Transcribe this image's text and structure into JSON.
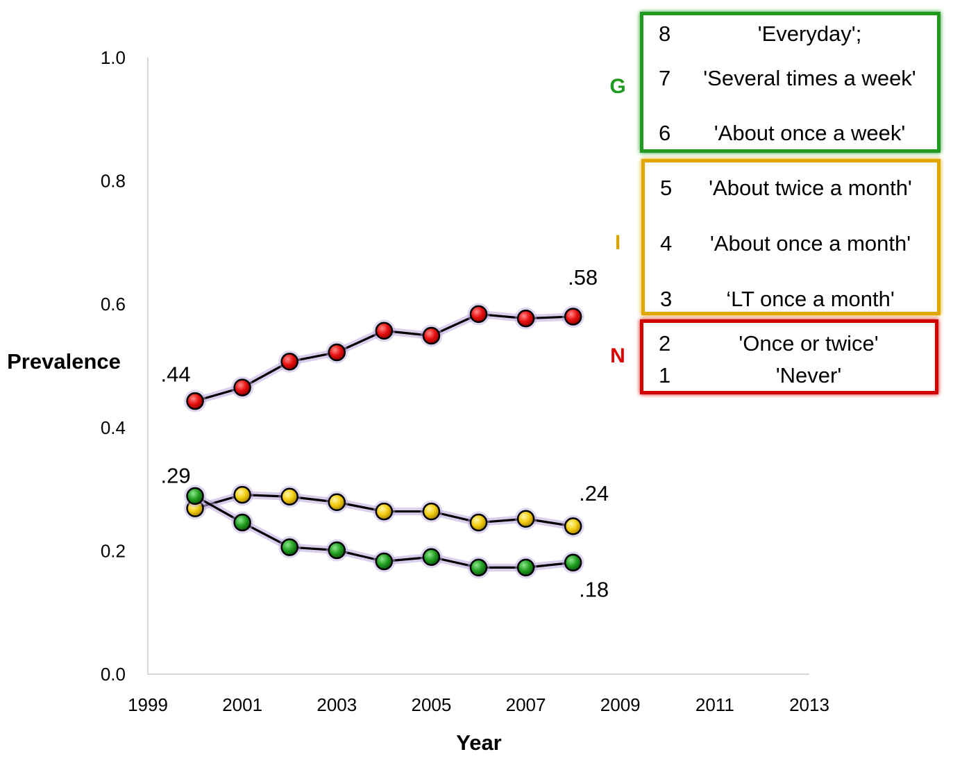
{
  "chart_data": {
    "type": "line",
    "xlabel": "Year",
    "ylabel": "Prevalence",
    "xlim": [
      1999,
      2013
    ],
    "ylim": [
      0,
      1
    ],
    "xticks": [
      "1999",
      "2001",
      "2003",
      "2005",
      "2007",
      "2009",
      "2011",
      "2013"
    ],
    "yticks": [
      "0.0",
      "0.2",
      "0.4",
      "0.6",
      "0.8",
      "1.0"
    ],
    "x": [
      2000,
      2001,
      2002,
      2003,
      2004,
      2005,
      2006,
      2007,
      2008
    ],
    "grid": false,
    "series": [
      {
        "name": "N",
        "color": "#e00000",
        "values": [
          0.443,
          0.465,
          0.507,
          0.522,
          0.557,
          0.549,
          0.584,
          0.577,
          0.58
        ]
      },
      {
        "name": "I",
        "color": "#e8c400",
        "values": [
          0.269,
          0.291,
          0.288,
          0.279,
          0.264,
          0.264,
          0.246,
          0.252,
          0.24
        ]
      },
      {
        "name": "G",
        "color": "#1f9a1f",
        "values": [
          0.289,
          0.246,
          0.206,
          0.201,
          0.183,
          0.19,
          0.173,
          0.173,
          0.181
        ]
      }
    ],
    "annotations": [
      {
        "text": ".44",
        "x": 2000,
        "y": 0.443
      },
      {
        "text": ".58",
        "x": 2008,
        "y": 0.58
      },
      {
        "text": ".29",
        "x": 2000,
        "y": 0.289
      },
      {
        "text": ".24",
        "x": 2008,
        "y": 0.24
      },
      {
        "text": ".18",
        "x": 2008,
        "y": 0.181
      }
    ]
  },
  "legend": {
    "groups": [
      {
        "letter": "G",
        "color": "#1f9a1f",
        "border": "#1f9a1f",
        "items": [
          {
            "num": "8",
            "text": "'Everyday';"
          },
          {
            "num": "7",
            "text": "'Several times a week'"
          },
          {
            "num": "6",
            "text": "'About once a week'"
          }
        ]
      },
      {
        "letter": "I",
        "color": "#d8a400",
        "border": "#e0a800",
        "items": [
          {
            "num": "5",
            "text": "'About twice a month'"
          },
          {
            "num": "4",
            "text": "'About once a month'"
          },
          {
            "num": "3",
            "text": "‘LT once a month'"
          }
        ]
      },
      {
        "letter": "N",
        "color": "#e00000",
        "border": "#d00000",
        "items": [
          {
            "num": "2",
            "text": "'Once or twice'"
          },
          {
            "num": "1",
            "text": "'Never'"
          }
        ]
      }
    ]
  }
}
